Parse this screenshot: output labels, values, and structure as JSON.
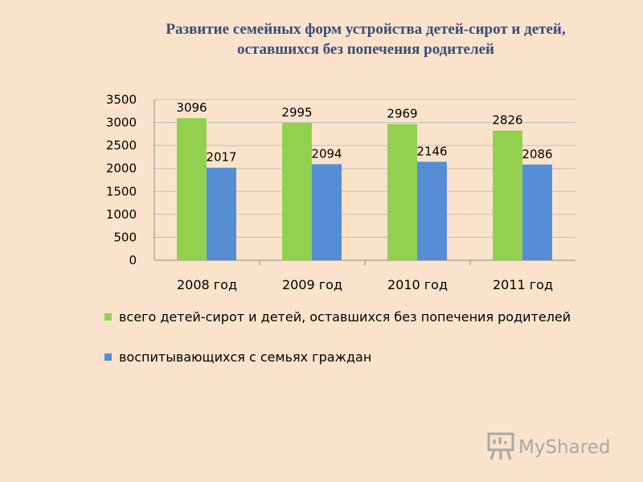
{
  "title_line1": "Развитие семейных форм устройства детей-сирот и детей,",
  "title_line2": "оставшихся без попечения родителей",
  "watermark_text": "MyShared",
  "colors": {
    "background": "#fbe3cb",
    "series1": "#92d050",
    "series2": "#558ed5",
    "title": "#3a4a7a",
    "grid": "#bfbfbf",
    "watermark": "#a8a8a8"
  },
  "chart_data": {
    "type": "bar",
    "categories": [
      "2008 год",
      "2009 год",
      "2010 год",
      "2011 год"
    ],
    "series": [
      {
        "name": "всего детей-сирот и детей, оставшихся без попечения родителей",
        "values": [
          3096,
          2995,
          2969,
          2826
        ],
        "color": "#92d050"
      },
      {
        "name": "воспитывающихся с семьях граждан",
        "values": [
          2017,
          2094,
          2146,
          2086
        ],
        "color": "#558ed5"
      }
    ],
    "ylim": [
      0,
      3500
    ],
    "yticks": [
      0,
      500,
      1000,
      1500,
      2000,
      2500,
      3000,
      3500
    ],
    "grid": true,
    "legend_position": "bottom",
    "data_labels": true
  }
}
